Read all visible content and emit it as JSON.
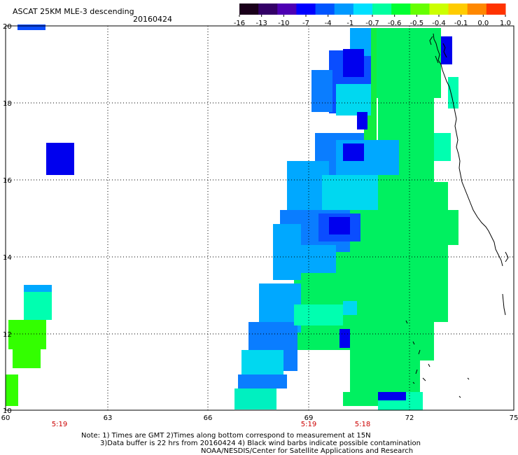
{
  "title": {
    "product": "ASCAT 25KM MLE-3 descending",
    "date": "20160424"
  },
  "colorbar": {
    "labels": [
      "-16",
      "-13",
      "-10",
      "-7",
      "-4",
      "-1",
      "-0.7",
      "-0.6",
      "-0.5",
      "-0.4",
      "-0.1",
      "0.0",
      "1.0"
    ],
    "colors": [
      "#1a001a",
      "#330066",
      "#4d00b3",
      "#0000ff",
      "#0055ff",
      "#0099ff",
      "#00e0ff",
      "#00ffa0",
      "#00ff33",
      "#66ff00",
      "#ccff00",
      "#ffcc00",
      "#ff8800",
      "#ff3300"
    ]
  },
  "axes": {
    "lon_labels": [
      "60",
      "63",
      "66",
      "69",
      "72",
      "75"
    ],
    "lat_labels": [
      "20",
      "18",
      "16",
      "14",
      "12",
      "10"
    ]
  },
  "time_labels": [
    "5:19",
    "5:19",
    "5:18"
  ],
  "notes": {
    "line1": "Note: 1) Times are GMT 2)Times along bottom correspond to measurement at 15N",
    "line2": "3)Data buffer is 22 hrs from 20160424 4) Black wind barbs indicate possible contamination",
    "line3": "NOAA/NESDIS/Center for Satellite Applications and Research"
  }
}
